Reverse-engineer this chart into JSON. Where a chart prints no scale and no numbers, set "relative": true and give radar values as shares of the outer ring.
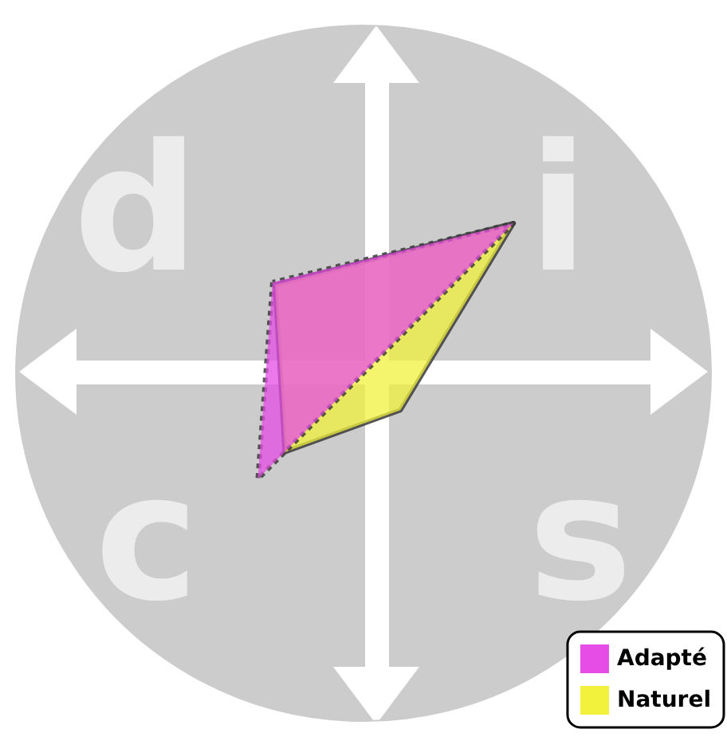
{
  "chart_data": {
    "type": "radar",
    "relative": true,
    "categories": [
      "d",
      "i",
      "s",
      "c"
    ],
    "series": [
      {
        "name": "Adapté",
        "color": "#e64ce6",
        "line_style": "dotted",
        "values": [
          0.37,
          0.61,
          0,
          0.43
        ]
      },
      {
        "name": "Naturel",
        "color": "#f2f23c",
        "line_style": "solid",
        "values": [
          0.36,
          0.61,
          0.15,
          0.32
        ]
      }
    ],
    "legend": "bottom right"
  }
}
